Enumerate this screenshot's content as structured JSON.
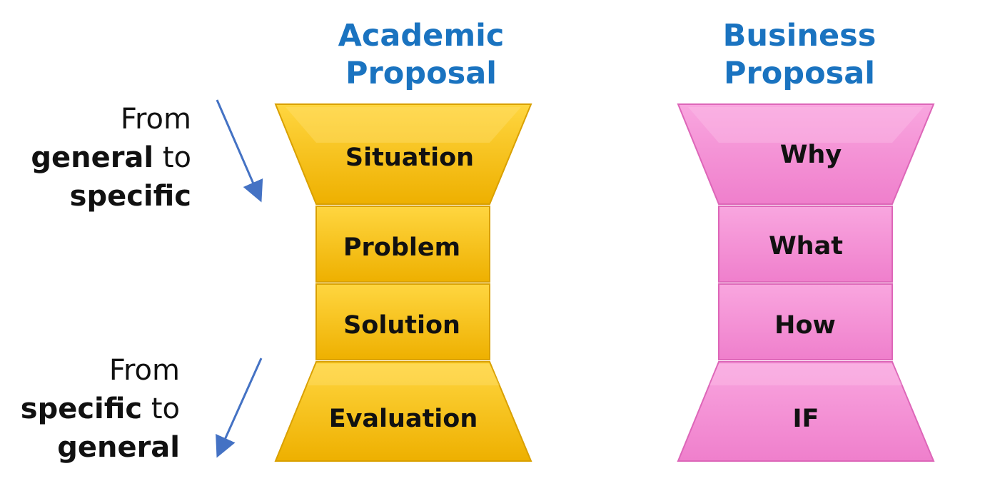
{
  "academic": {
    "title_line1": "Academic",
    "title_line2": "Proposal",
    "color": "#f5bd00",
    "segments": [
      "Situation",
      "Problem",
      "Solution",
      "Evaluation"
    ]
  },
  "business": {
    "title_line1": "Business",
    "title_line2": "Proposal",
    "color": "#f48ad2",
    "segments": [
      "Why",
      "What",
      "How",
      "IF"
    ]
  },
  "notes": {
    "top": {
      "from": "From",
      "bold1": "general",
      "to": " to",
      "bold2": "specific"
    },
    "bottom": {
      "from": "From",
      "bold1": "specific",
      "to": " to",
      "bold2": "general"
    }
  },
  "title_color": "#1a73c0",
  "arrow_color": "#4472c4"
}
